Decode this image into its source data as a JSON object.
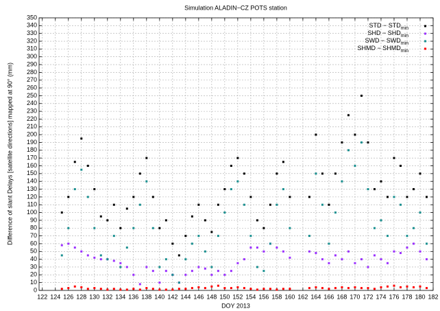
{
  "chart_data": {
    "type": "scatter",
    "title": "Simulation ALADIN−CZ    POTS station",
    "x_label": "DOY 2013",
    "y_label": "Difference of slant Delays [satellite directions] mapped at 90° (mm)",
    "xlim": [
      121.5,
      182
    ],
    "ylim": [
      0,
      350
    ],
    "xticks": [
      122,
      124,
      126,
      128,
      130,
      132,
      134,
      136,
      138,
      140,
      142,
      144,
      146,
      148,
      150,
      152,
      154,
      156,
      158,
      160,
      162,
      164,
      166,
      168,
      170,
      172,
      174,
      176,
      178,
      180,
      182
    ],
    "yticks": [
      0,
      10,
      20,
      30,
      40,
      50,
      60,
      70,
      80,
      90,
      100,
      110,
      120,
      130,
      140,
      150,
      160,
      170,
      180,
      190,
      200,
      210,
      220,
      230,
      240,
      250,
      260,
      270,
      280,
      290,
      300,
      310,
      320,
      330,
      340,
      350
    ],
    "grid": true,
    "legend": "upper right",
    "x": [
      125,
      126,
      127,
      128,
      129,
      130,
      131,
      132,
      133,
      134,
      135,
      136,
      137,
      138,
      139,
      140,
      141,
      142,
      143,
      144,
      145,
      146,
      147,
      148,
      149,
      150,
      151,
      152,
      153,
      154,
      155,
      156,
      157,
      158,
      159,
      160,
      163,
      164,
      165,
      166,
      167,
      168,
      169,
      170,
      171,
      172,
      173,
      174,
      175,
      176,
      177,
      178,
      179,
      180,
      181
    ],
    "series": [
      {
        "name": "STD − STD",
        "name_subscript": "min",
        "color": "#000000",
        "values": [
          100,
          120,
          165,
          195,
          160,
          130,
          95,
          90,
          110,
          80,
          105,
          120,
          150,
          170,
          120,
          80,
          90,
          60,
          45,
          70,
          95,
          110,
          90,
          75,
          110,
          130,
          160,
          170,
          150,
          120,
          90,
          80,
          110,
          150,
          165,
          120,
          120,
          200,
          150,
          110,
          150,
          190,
          225,
          200,
          250,
          190,
          130,
          140,
          120,
          170,
          160,
          120,
          130,
          150,
          120
        ]
      },
      {
        "name": "SHD − SHD",
        "name_subscript": "min",
        "color": "#9b30ff",
        "values": [
          58,
          60,
          55,
          50,
          45,
          42,
          40,
          40,
          38,
          35,
          30,
          20,
          8,
          30,
          25,
          10,
          25,
          20,
          10,
          20,
          25,
          30,
          28,
          20,
          25,
          20,
          25,
          35,
          40,
          55,
          55,
          50,
          60,
          55,
          50,
          42,
          50,
          48,
          40,
          35,
          45,
          40,
          50,
          35,
          40,
          30,
          45,
          40,
          35,
          50,
          48,
          55,
          60,
          50,
          40
        ]
      },
      {
        "name": "SWD − SWD",
        "name_subscript": "min",
        "color": "#1a9090",
        "values": [
          45,
          80,
          130,
          155,
          120,
          80,
          45,
          40,
          70,
          30,
          55,
          80,
          110,
          140,
          80,
          30,
          40,
          20,
          10,
          40,
          60,
          70,
          50,
          30,
          70,
          100,
          130,
          140,
          110,
          70,
          30,
          25,
          60,
          110,
          130,
          80,
          70,
          150,
          110,
          60,
          100,
          140,
          180,
          160,
          190,
          130,
          80,
          90,
          70,
          120,
          110,
          70,
          80,
          100,
          60
        ]
      },
      {
        "name": "SHMD − SHMD",
        "name_subscript": "min",
        "color": "#ff0000",
        "values": [
          2,
          3,
          5,
          4,
          2,
          3,
          2,
          1,
          2,
          1,
          1,
          2,
          1,
          3,
          2,
          1,
          1,
          1,
          2,
          2,
          3,
          4,
          3,
          5,
          6,
          3,
          3,
          4,
          3,
          2,
          1,
          2,
          2,
          1,
          2,
          2,
          3,
          4,
          3,
          2,
          3,
          4,
          3,
          4,
          3,
          3,
          2,
          4,
          5,
          6,
          4,
          5,
          4,
          5,
          3
        ]
      }
    ]
  }
}
